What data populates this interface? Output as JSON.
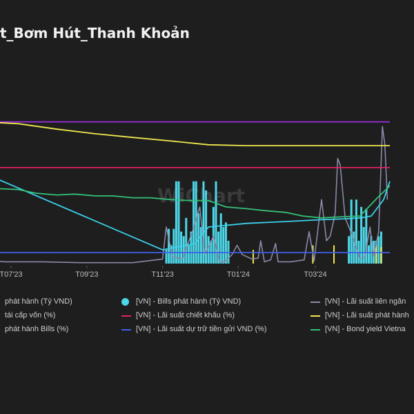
{
  "page": {
    "title": "t_Bơm Hút_Thanh Khoản",
    "watermark": "WiChart"
  },
  "colors": {
    "background": "#1e1e1e",
    "bills_issued": "#4dd7e8",
    "interbank": "#8a8aa8",
    "refinance": "#9b2fe0",
    "discount": "#e0245e",
    "issue_rate": "#f2e94e",
    "bills_rate": "#3bd0ec",
    "reserve_rate": "#3d5fe8",
    "bond_yield": "#34c27a"
  },
  "chart_data": {
    "type": "line",
    "title": "t_Bơm Hút_Thanh Khoản",
    "xlabel": "",
    "ylabel": "",
    "x_ticks": [
      "T07'23",
      "T09'23",
      "T11'23",
      "T01'24",
      "T03'24"
    ],
    "grid": false,
    "legend_position": "bottom",
    "series": [
      {
        "key": "bills_issued_left",
        "type": "bar",
        "name": "phát hành (Tỷ VND)",
        "marker": "line",
        "color": "#4dd7e8",
        "points": []
      },
      {
        "key": "bills_issued",
        "type": "bar",
        "name": "[VN] - Bills phát hành (Tỷ VND)",
        "marker": "dot",
        "color": "#4dd7e8",
        "points": [
          [
            "2023-10-28",
            0.15
          ],
          [
            "2023-10-30",
            0.38
          ],
          [
            "2023-11-01",
            0.2
          ],
          [
            "2023-11-03",
            0.38
          ],
          [
            "2023-11-05",
            0.9
          ],
          [
            "2023-11-07",
            0.9
          ],
          [
            "2023-11-09",
            0.35
          ],
          [
            "2023-11-11",
            0.3
          ],
          [
            "2023-11-13",
            0.5
          ],
          [
            "2023-11-15",
            0.2
          ],
          [
            "2023-11-17",
            0.35
          ],
          [
            "2023-11-19",
            0.9
          ],
          [
            "2023-11-21",
            0.9
          ],
          [
            "2023-11-23",
            0.55
          ],
          [
            "2023-11-25",
            0.4
          ],
          [
            "2023-11-27",
            0.9
          ],
          [
            "2023-11-29",
            0.8
          ],
          [
            "2023-12-01",
            0.3
          ],
          [
            "2023-12-03",
            0.25
          ],
          [
            "2023-12-05",
            0.62
          ],
          [
            "2023-12-07",
            0.9
          ],
          [
            "2023-12-09",
            0.35
          ],
          [
            "2023-12-11",
            0.55
          ],
          [
            "2023-12-13",
            0.4
          ],
          [
            "2023-12-15",
            0.45
          ],
          [
            "2023-12-17",
            0.25
          ],
          [
            "2024-03-23",
            0.3
          ],
          [
            "2024-03-25",
            0.7
          ],
          [
            "2024-03-27",
            0.35
          ],
          [
            "2024-03-29",
            0.7
          ],
          [
            "2024-03-31",
            0.25
          ],
          [
            "2024-04-02",
            0.62
          ],
          [
            "2024-04-04",
            0.4
          ],
          [
            "2024-04-06",
            0.6
          ],
          [
            "2024-04-08",
            0.2
          ],
          [
            "2024-04-10",
            0.3
          ],
          [
            "2024-04-12",
            0.25
          ],
          [
            "2024-04-14",
            0.25
          ],
          [
            "2024-04-16",
            0.3
          ],
          [
            "2024-04-18",
            0.35
          ]
        ]
      },
      {
        "key": "interbank",
        "type": "line",
        "name": "[VN] - Lãi suất liên ngân",
        "marker": "line",
        "color": "#8a8aa8",
        "points": [
          [
            "2023-06-01",
            0.2
          ],
          [
            "2023-06-08",
            0.3
          ],
          [
            "2023-06-11",
            0.03
          ],
          [
            "2023-06-20",
            0.02
          ],
          [
            "2023-07-20",
            0.02
          ],
          [
            "2023-08-20",
            0.01
          ],
          [
            "2023-10-01",
            0.01
          ],
          [
            "2023-10-25",
            0.05
          ],
          [
            "2023-10-28",
            0.4
          ],
          [
            "2023-11-02",
            0.08
          ],
          [
            "2023-11-10",
            0.05
          ],
          [
            "2023-11-18",
            0.35
          ],
          [
            "2023-11-24",
            0.62
          ],
          [
            "2023-11-28",
            0.1
          ],
          [
            "2023-12-05",
            0.3
          ],
          [
            "2023-12-10",
            0.02
          ],
          [
            "2023-12-14",
            0.02
          ],
          [
            "2023-12-20",
            0.1
          ],
          [
            "2023-12-24",
            0.2
          ],
          [
            "2023-12-28",
            0.1
          ],
          [
            "2024-01-05",
            0.05
          ],
          [
            "2024-01-10",
            0.06
          ],
          [
            "2024-01-12",
            0.25
          ],
          [
            "2024-01-15",
            0.02
          ],
          [
            "2024-01-20",
            0.04
          ],
          [
            "2024-01-24",
            0.22
          ],
          [
            "2024-01-26",
            0.02
          ],
          [
            "2024-02-05",
            0.02
          ],
          [
            "2024-02-16",
            0.04
          ],
          [
            "2024-02-20",
            0.35
          ],
          [
            "2024-02-24",
            0.03
          ],
          [
            "2024-03-01",
            0.7
          ],
          [
            "2024-03-05",
            0.25
          ],
          [
            "2024-03-08",
            0.3
          ],
          [
            "2024-03-12",
            0.55
          ],
          [
            "2024-03-14",
            1.15
          ],
          [
            "2024-03-16",
            1.08
          ],
          [
            "2024-03-20",
            0.5
          ],
          [
            "2024-03-26",
            0.3
          ],
          [
            "2024-04-01",
            0.05
          ],
          [
            "2024-04-05",
            0.08
          ],
          [
            "2024-04-09",
            0.4
          ],
          [
            "2024-04-12",
            0.08
          ],
          [
            "2024-04-16",
            0.35
          ],
          [
            "2024-04-19",
            1.5
          ],
          [
            "2024-04-21",
            1.3
          ],
          [
            "2024-04-23",
            0.7
          ]
        ]
      },
      {
        "key": "refinance",
        "type": "line",
        "name": "tái cấp vốn (%)",
        "marker": "line",
        "color": "#9b2fe0",
        "points": [
          [
            "2023-06-01",
            1.55
          ],
          [
            "2024-04-25",
            1.55
          ]
        ]
      },
      {
        "key": "discount",
        "type": "line",
        "name": "[VN] - Lãi suất chiết khấu (%)",
        "marker": "line",
        "color": "#e0245e",
        "points": [
          [
            "2023-06-01",
            1.05
          ],
          [
            "2024-04-25",
            1.05
          ]
        ]
      },
      {
        "key": "issue_rate",
        "type": "line",
        "name": "[VN] - Lãi suất phát hành",
        "marker": "line",
        "color": "#f2e94e",
        "points": [
          [
            "2023-06-01",
            1.55
          ],
          [
            "2023-07-01",
            1.53
          ],
          [
            "2023-08-01",
            1.47
          ],
          [
            "2023-09-01",
            1.42
          ],
          [
            "2023-10-01",
            1.38
          ],
          [
            "2023-11-01",
            1.34
          ],
          [
            "2023-12-01",
            1.3
          ],
          [
            "2024-01-01",
            1.29
          ],
          [
            "2024-04-25",
            1.29
          ]
        ]
      },
      {
        "key": "issue_rate_spikes",
        "type": "bar",
        "name": "",
        "marker": "none",
        "color": "#f2e94e",
        "points": [
          [
            "2024-01-06",
            0.15
          ],
          [
            "2024-02-23",
            0.2
          ],
          [
            "2024-03-11",
            0.2
          ],
          [
            "2024-04-14",
            0.2
          ],
          [
            "2024-04-18",
            0.18
          ]
        ]
      },
      {
        "key": "bills_rate",
        "type": "line",
        "name": "phát hành Bills (%)",
        "marker": "line",
        "color": "#3bd0ec",
        "points": [
          [
            "2023-06-01",
            1.0
          ],
          [
            "2023-10-25",
            0.15
          ],
          [
            "2023-11-20",
            0.22
          ],
          [
            "2023-12-01",
            0.4
          ],
          [
            "2024-01-01",
            0.44
          ],
          [
            "2024-02-01",
            0.46
          ],
          [
            "2024-03-01",
            0.48
          ],
          [
            "2024-03-20",
            0.49
          ],
          [
            "2024-04-01",
            0.5
          ],
          [
            "2024-04-10",
            0.52
          ],
          [
            "2024-04-20",
            0.7
          ],
          [
            "2024-04-25",
            0.9
          ]
        ]
      },
      {
        "key": "reserve_rate",
        "type": "line",
        "name": "[VN] - Lãi suất dự trữ tiền gửi VND (%)",
        "marker": "line",
        "color": "#3d5fe8",
        "points": [
          [
            "2023-06-01",
            0.12
          ],
          [
            "2024-04-25",
            0.12
          ]
        ]
      },
      {
        "key": "bond_yield",
        "type": "line",
        "name": "[VN] - Bond yield Vietna",
        "marker": "line",
        "color": "#34c27a",
        "points": [
          [
            "2023-06-01",
            0.82
          ],
          [
            "2023-06-15",
            0.82
          ],
          [
            "2023-07-01",
            0.81
          ],
          [
            "2023-07-15",
            0.77
          ],
          [
            "2023-08-01",
            0.75
          ],
          [
            "2023-08-15",
            0.76
          ],
          [
            "2023-09-01",
            0.74
          ],
          [
            "2023-09-15",
            0.74
          ],
          [
            "2023-10-01",
            0.72
          ],
          [
            "2023-10-15",
            0.72
          ],
          [
            "2023-11-01",
            0.7
          ],
          [
            "2023-11-15",
            0.69
          ],
          [
            "2023-12-01",
            0.69
          ],
          [
            "2023-12-15",
            0.62
          ],
          [
            "2024-01-01",
            0.6
          ],
          [
            "2024-01-15",
            0.58
          ],
          [
            "2024-02-01",
            0.56
          ],
          [
            "2024-02-15",
            0.52
          ],
          [
            "2024-03-01",
            0.5
          ],
          [
            "2024-03-15",
            0.51
          ],
          [
            "2024-04-01",
            0.52
          ],
          [
            "2024-04-15",
            0.72
          ],
          [
            "2024-04-25",
            0.85
          ]
        ]
      }
    ]
  }
}
